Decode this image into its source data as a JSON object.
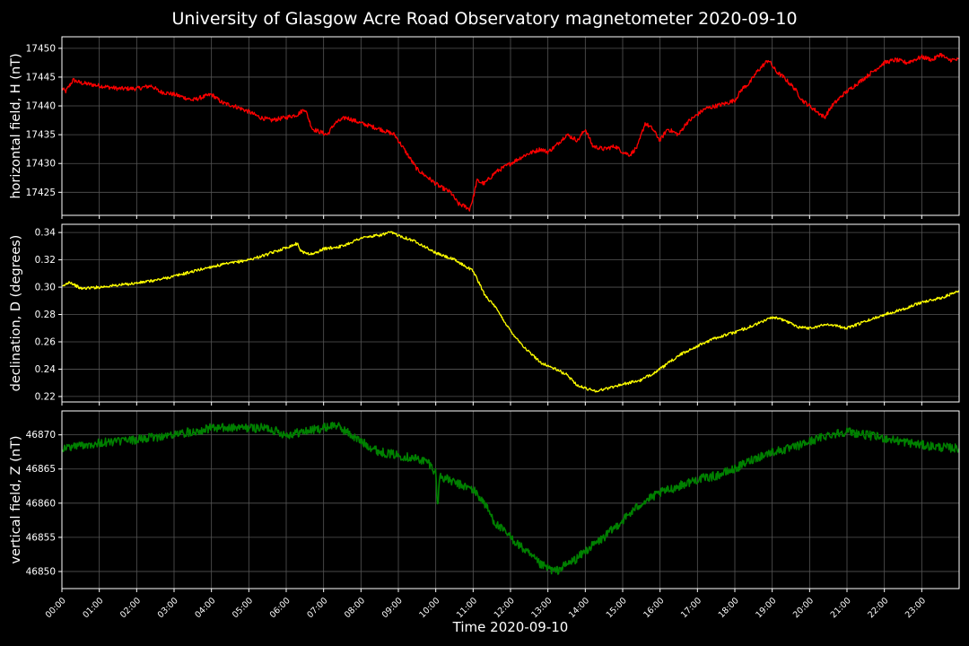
{
  "title": "University of Glasgow Acre Road Observatory magnetometer 2020-09-10",
  "xlabel": "Time 2020-09-10",
  "x_ticks": [
    "00:00",
    "01:00",
    "02:00",
    "03:00",
    "04:00",
    "05:00",
    "06:00",
    "07:00",
    "08:00",
    "09:00",
    "10:00",
    "11:00",
    "12:00",
    "13:00",
    "14:00",
    "15:00",
    "16:00",
    "17:00",
    "18:00",
    "19:00",
    "20:00",
    "21:00",
    "22:00",
    "23:00"
  ],
  "chart_data": [
    {
      "type": "line",
      "ylabel": "horizontal field, H (nT)",
      "color": "#ff0000",
      "xlim": [
        0,
        24
      ],
      "ylim": [
        17421,
        17452
      ],
      "yticks": [
        17425,
        17430,
        17435,
        17440,
        17445,
        17450
      ],
      "grid": true,
      "x": [
        0,
        0.1,
        0.3,
        0.5,
        1.0,
        1.5,
        2.0,
        2.4,
        2.6,
        3.0,
        3.5,
        4.0,
        4.3,
        4.6,
        5.0,
        5.3,
        5.6,
        6.0,
        6.3,
        6.5,
        6.7,
        6.9,
        7.1,
        7.3,
        7.6,
        8.0,
        8.5,
        8.9,
        9.1,
        9.3,
        9.5,
        9.8,
        10.1,
        10.4,
        10.6,
        10.8,
        10.9,
        11.0,
        11.1,
        11.3,
        11.6,
        12.0,
        12.4,
        12.8,
        13.0,
        13.2,
        13.5,
        13.8,
        14.0,
        14.2,
        14.5,
        14.8,
        15.0,
        15.2,
        15.4,
        15.6,
        15.8,
        16.0,
        16.2,
        16.5,
        16.7,
        16.9,
        17.2,
        17.5,
        17.8,
        18.0,
        18.2,
        18.4,
        18.6,
        18.9,
        19.1,
        19.3,
        19.6,
        19.8,
        20.0,
        20.2,
        20.4,
        20.6,
        20.9,
        21.3,
        21.7,
        22.0,
        22.3,
        22.6,
        23.0,
        23.3,
        23.5,
        23.7,
        24.0
      ],
      "y": [
        17443,
        17442.5,
        17444.5,
        17444,
        17443.5,
        17443,
        17443,
        17443.5,
        17442.5,
        17442,
        17441,
        17442,
        17440.5,
        17440,
        17439,
        17438,
        17437.5,
        17438,
        17438.5,
        17439.5,
        17436,
        17435.5,
        17435,
        17437,
        17438,
        17437,
        17436,
        17435,
        17433,
        17431,
        17429,
        17427.5,
        17426,
        17425,
        17423,
        17422.5,
        17422,
        17424,
        17427,
        17426.5,
        17428.5,
        17430,
        17431.5,
        17432.5,
        17432,
        17433,
        17435,
        17434,
        17436,
        17433,
        17432.5,
        17433,
        17432,
        17431.5,
        17433,
        17437,
        17436,
        17434,
        17436,
        17435,
        17437,
        17438,
        17439.5,
        17440,
        17440.5,
        17441,
        17443,
        17444,
        17446,
        17448,
        17446,
        17445,
        17443,
        17441,
        17440,
        17439,
        17438,
        17440,
        17442,
        17444,
        17446,
        17447.5,
        17448,
        17447.5,
        17448.5,
        17448,
        17449,
        17448,
        17448
      ]
    },
    {
      "type": "line",
      "ylabel": "declination, D (degrees)",
      "color": "#ffff00",
      "xlim": [
        0,
        24
      ],
      "ylim": [
        0.216,
        0.346
      ],
      "yticks": [
        0.22,
        0.24,
        0.26,
        0.28,
        0.3,
        0.32,
        0.34
      ],
      "grid": true,
      "x": [
        0,
        0.2,
        0.5,
        1.0,
        2.0,
        2.5,
        3.0,
        4.0,
        5.0,
        5.5,
        6.0,
        6.3,
        6.4,
        6.7,
        7.0,
        7.5,
        8.0,
        8.5,
        8.8,
        9.1,
        9.5,
        10.0,
        10.5,
        11.0,
        11.3,
        11.6,
        12.0,
        12.4,
        12.8,
        13.2,
        13.5,
        13.8,
        14.0,
        14.3,
        14.6,
        15.0,
        15.5,
        16.0,
        16.5,
        17.0,
        17.5,
        18.0,
        18.5,
        19.0,
        19.3,
        19.7,
        20.0,
        20.5,
        21.0,
        21.5,
        22.0,
        22.5,
        23.0,
        23.5,
        24.0
      ],
      "y": [
        0.3,
        0.304,
        0.299,
        0.3,
        0.303,
        0.305,
        0.308,
        0.315,
        0.32,
        0.324,
        0.329,
        0.332,
        0.326,
        0.324,
        0.328,
        0.33,
        0.336,
        0.338,
        0.34,
        0.337,
        0.333,
        0.325,
        0.32,
        0.312,
        0.295,
        0.285,
        0.268,
        0.255,
        0.245,
        0.24,
        0.236,
        0.228,
        0.226,
        0.224,
        0.226,
        0.229,
        0.232,
        0.24,
        0.25,
        0.257,
        0.263,
        0.267,
        0.272,
        0.278,
        0.276,
        0.271,
        0.27,
        0.273,
        0.27,
        0.275,
        0.28,
        0.284,
        0.289,
        0.292,
        0.297
      ]
    },
    {
      "type": "line",
      "ylabel": "vertical field, Z (nT)",
      "color": "#008000",
      "xlim": [
        0,
        24
      ],
      "ylim": [
        46847.5,
        46873.5
      ],
      "yticks": [
        46850,
        46855,
        46860,
        46865,
        46870
      ],
      "grid": true,
      "x": [
        0,
        0.5,
        1.0,
        2.0,
        3.0,
        4.0,
        5.0,
        5.5,
        6.0,
        6.5,
        7.0,
        7.3,
        7.6,
        8.0,
        8.5,
        9.0,
        9.5,
        9.8,
        10.0,
        10.05,
        10.1,
        10.5,
        11.0,
        11.3,
        11.6,
        12.0,
        12.4,
        12.8,
        13.0,
        13.2,
        13.5,
        13.8,
        14.0,
        14.5,
        15.0,
        15.5,
        16.0,
        16.5,
        17.0,
        17.5,
        18.0,
        18.5,
        19.0,
        19.5,
        20.0,
        20.5,
        21.0,
        21.5,
        22.0,
        22.5,
        23.0,
        23.5,
        24.0
      ],
      "y": [
        46868,
        46868.5,
        46868.8,
        46869.3,
        46870,
        46871,
        46871,
        46871,
        46870,
        46870.5,
        46871,
        46871.5,
        46870.5,
        46869,
        46867.5,
        46867,
        46866.5,
        46866,
        46864.5,
        46859,
        46864,
        46863,
        46862,
        46860,
        46857,
        46855,
        46853,
        46851,
        46850.5,
        46850,
        46851,
        46852,
        46853,
        46855,
        46857.5,
        46860,
        46861.5,
        46862.5,
        46863.5,
        46864,
        46865,
        46866.5,
        46867.5,
        46868,
        46869,
        46870,
        46870.5,
        46870,
        46869.5,
        46869,
        46868.5,
        46868.2,
        46868
      ]
    }
  ]
}
